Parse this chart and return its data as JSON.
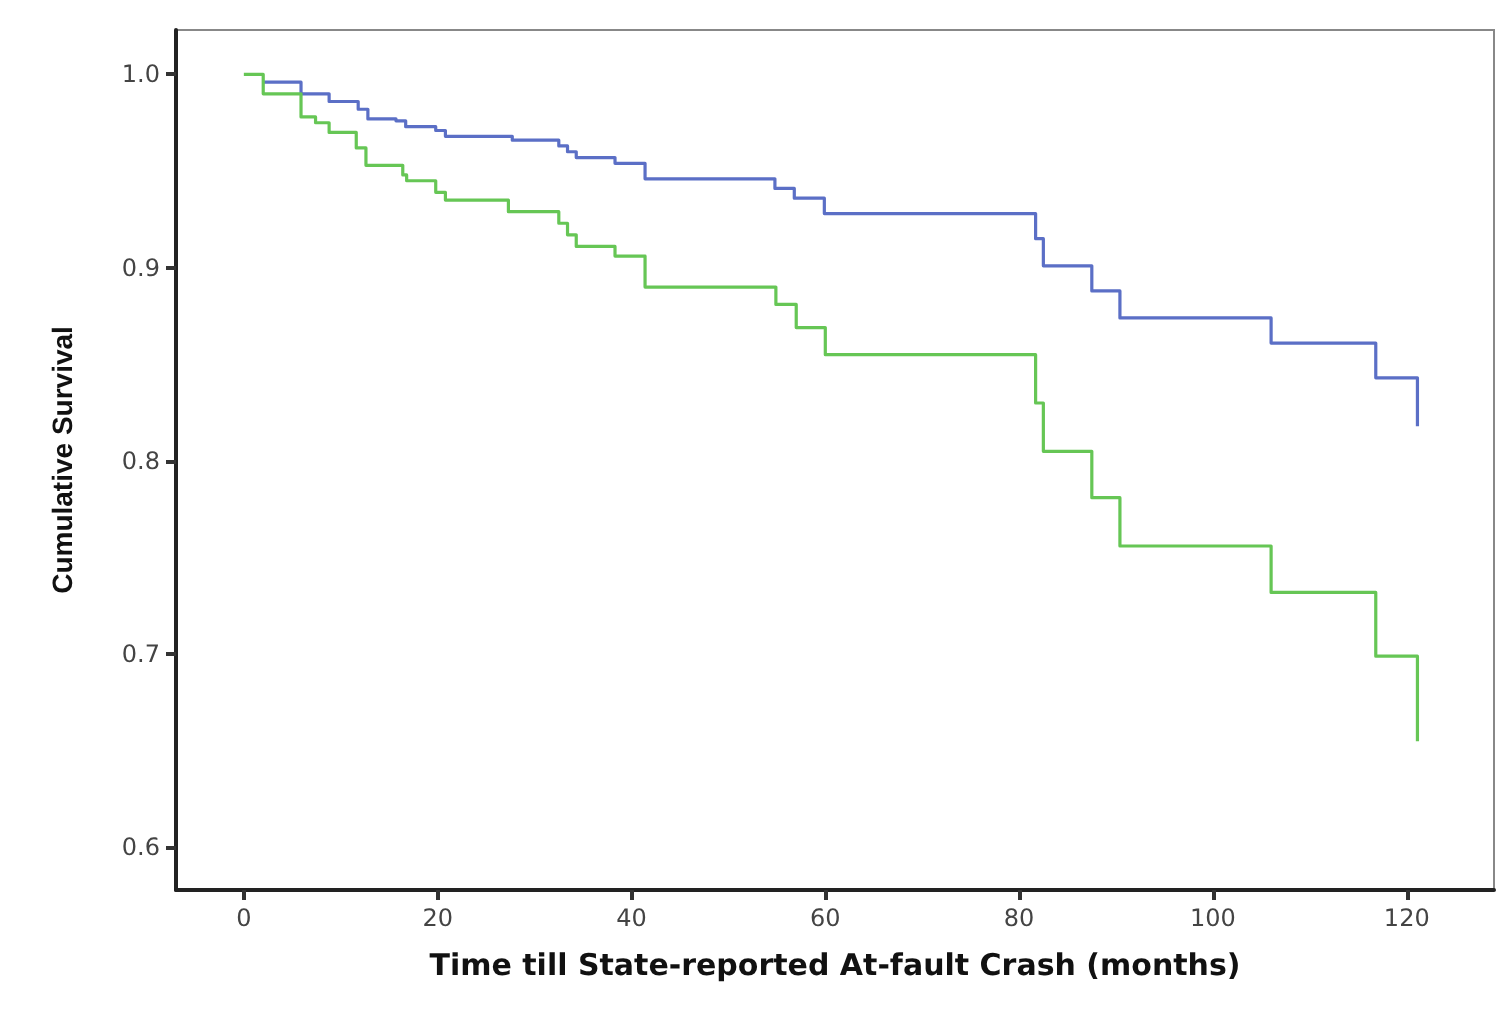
{
  "chart_data": {
    "type": "step",
    "xlabel": "Time till State-reported At-fault Crash (months)",
    "ylabel": "Cumulative Survival",
    "xlim": [
      -7,
      129
    ],
    "xticks": [
      0,
      20,
      40,
      60,
      80,
      100,
      120
    ],
    "ylim": [
      0.578,
      1.023
    ],
    "yticks": [
      {
        "value": 0.6,
        "label": "0.6"
      },
      {
        "value": 0.7,
        "label": "0.7"
      },
      {
        "value": 0.8,
        "label": "0.8"
      },
      {
        "value": 0.9,
        "label": "0.9"
      },
      {
        "value": 1,
        "label": "1.0"
      }
    ],
    "grid": false,
    "marker": "none",
    "line_style": "solid",
    "series": [
      {
        "color": "#5b6fc6",
        "x": [
          2.0,
          5.9,
          8.8,
          11.8,
          12.8,
          15.7,
          16.7,
          19.8,
          20.8,
          27.7,
          32.5,
          33.4,
          34.3,
          38.3,
          41.4,
          54.8,
          56.8,
          59.9,
          81.7,
          82.5,
          87.5,
          90.4,
          106.0,
          116.8,
          121.1
        ],
        "values": [
          0.996,
          0.99,
          0.986,
          0.982,
          0.977,
          0.976,
          0.973,
          0.971,
          0.968,
          0.966,
          0.963,
          0.96,
          0.957,
          0.954,
          0.946,
          0.941,
          0.936,
          0.928,
          0.915,
          0.901,
          0.888,
          0.874,
          0.861,
          0.843,
          0.818
        ]
      },
      {
        "color": "#66c655",
        "x": [
          0,
          2.0,
          5.9,
          7.4,
          8.8,
          11.6,
          12.6,
          16.4,
          16.8,
          19.8,
          20.8,
          27.3,
          32.5,
          33.4,
          34.3,
          38.3,
          41.4,
          54.9,
          57.0,
          60.0,
          81.7,
          82.5,
          87.5,
          90.4,
          106.0,
          116.8,
          121.1
        ],
        "values": [
          1.0,
          0.99,
          0.978,
          0.975,
          0.97,
          0.962,
          0.953,
          0.948,
          0.945,
          0.939,
          0.935,
          0.929,
          0.923,
          0.917,
          0.911,
          0.906,
          0.89,
          0.881,
          0.869,
          0.855,
          0.83,
          0.805,
          0.781,
          0.756,
          0.732,
          0.699,
          0.655
        ]
      }
    ]
  }
}
